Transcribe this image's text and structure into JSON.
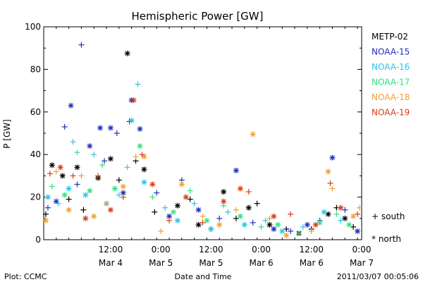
{
  "footer": {
    "left": "Plot: CCMC",
    "center": "Date and Time",
    "right": "2011/03/07 00:05:06"
  },
  "marker_legend": {
    "south": "+ south",
    "north": "* north"
  },
  "chart_data": {
    "type": "scatter",
    "title": "Hemispheric Power [GW]",
    "xlabel": "Date and Time",
    "ylabel": "P [GW]",
    "ylim": [
      0,
      100
    ],
    "yticks": [
      0,
      20,
      40,
      60,
      80,
      100
    ],
    "xlim": [
      "2011-03-03T20:00",
      "2011-03-07T00:00"
    ],
    "xticks": [
      {
        "t": "2011-03-04T12:00",
        "time": "12:00",
        "date": "Mar 4"
      },
      {
        "t": "2011-03-05T00:00",
        "time": "0:00",
        "date": "Mar 5"
      },
      {
        "t": "2011-03-05T12:00",
        "time": "12:00",
        "date": "Mar 5"
      },
      {
        "t": "2011-03-06T00:00",
        "time": "0:00",
        "date": "Mar 6"
      },
      {
        "t": "2011-03-06T12:00",
        "time": "12:00",
        "date": "Mar 6"
      },
      {
        "t": "2011-03-07T00:00",
        "time": "0:00",
        "date": "Mar 7"
      }
    ],
    "legend_position": "right",
    "markers": {
      "south": "+",
      "north": "*"
    },
    "series": [
      {
        "name": "METP-02",
        "color": "#000000",
        "points": [
          {
            "t": "2011-03-03T20:30",
            "y": 12,
            "h": "south"
          },
          {
            "t": "2011-03-03T22:00",
            "y": 35,
            "h": "north"
          },
          {
            "t": "2011-03-04T00:30",
            "y": 30,
            "h": "north"
          },
          {
            "t": "2011-03-04T02:00",
            "y": 19,
            "h": "south"
          },
          {
            "t": "2011-03-04T04:00",
            "y": 34,
            "h": "north"
          },
          {
            "t": "2011-03-04T05:30",
            "y": 14,
            "h": "south"
          },
          {
            "t": "2011-03-04T09:00",
            "y": 29,
            "h": "north"
          },
          {
            "t": "2011-03-04T12:00",
            "y": 38,
            "h": "north"
          },
          {
            "t": "2011-03-04T14:00",
            "y": 28,
            "h": "south"
          },
          {
            "t": "2011-03-04T16:00",
            "y": 87.5,
            "h": "north"
          },
          {
            "t": "2011-03-04T18:00",
            "y": 37,
            "h": "south"
          },
          {
            "t": "2011-03-04T20:00",
            "y": 33,
            "h": "north"
          },
          {
            "t": "2011-03-04T22:30",
            "y": 13,
            "h": "south"
          },
          {
            "t": "2011-03-05T04:00",
            "y": 16,
            "h": "north"
          },
          {
            "t": "2011-03-05T07:00",
            "y": 19,
            "h": "south"
          },
          {
            "t": "2011-03-05T09:00",
            "y": 7,
            "h": "north"
          },
          {
            "t": "2011-03-05T12:00",
            "y": 5,
            "h": "south"
          },
          {
            "t": "2011-03-05T15:00",
            "y": 22.5,
            "h": "north"
          },
          {
            "t": "2011-03-05T18:00",
            "y": 10,
            "h": "south"
          },
          {
            "t": "2011-03-05T21:00",
            "y": 15,
            "h": "north"
          },
          {
            "t": "2011-03-05T23:00",
            "y": 17,
            "h": "south"
          },
          {
            "t": "2011-03-06T02:00",
            "y": 7,
            "h": "north"
          },
          {
            "t": "2011-03-06T06:00",
            "y": 5,
            "h": "south"
          },
          {
            "t": "2011-03-06T09:00",
            "y": 3,
            "h": "north"
          },
          {
            "t": "2011-03-06T12:00",
            "y": 5,
            "h": "south"
          },
          {
            "t": "2011-03-06T16:00",
            "y": 12,
            "h": "north"
          },
          {
            "t": "2011-03-06T18:00",
            "y": 15,
            "h": "south"
          },
          {
            "t": "2011-03-06T20:00",
            "y": 10,
            "h": "north"
          },
          {
            "t": "2011-03-06T22:00",
            "y": 6,
            "h": "south"
          }
        ]
      },
      {
        "name": "NOAA-15",
        "color": "#1f2fbf",
        "points": [
          {
            "t": "2011-03-03T21:00",
            "y": 15,
            "h": "south"
          },
          {
            "t": "2011-03-03T23:00",
            "y": 18,
            "h": "north"
          },
          {
            "t": "2011-03-04T01:00",
            "y": 53,
            "h": "south"
          },
          {
            "t": "2011-03-04T02:30",
            "y": 63,
            "h": "north"
          },
          {
            "t": "2011-03-04T04:00",
            "y": 26,
            "h": "south"
          },
          {
            "t": "2011-03-04T05:00",
            "y": 91.5,
            "h": "south"
          },
          {
            "t": "2011-03-04T07:00",
            "y": 44,
            "h": "north"
          },
          {
            "t": "2011-03-04T09:30",
            "y": 52.5,
            "h": "north"
          },
          {
            "t": "2011-03-04T10:30",
            "y": 37,
            "h": "south"
          },
          {
            "t": "2011-03-04T12:00",
            "y": 52.5,
            "h": "north"
          },
          {
            "t": "2011-03-04T13:30",
            "y": 50,
            "h": "south"
          },
          {
            "t": "2011-03-04T15:00",
            "y": 22,
            "h": "north"
          },
          {
            "t": "2011-03-04T16:30",
            "y": 55.5,
            "h": "south"
          },
          {
            "t": "2011-03-04T17:00",
            "y": 65.5,
            "h": "north"
          },
          {
            "t": "2011-03-04T19:00",
            "y": 52,
            "h": "north"
          },
          {
            "t": "2011-03-04T23:00",
            "y": 22,
            "h": "south"
          },
          {
            "t": "2011-03-05T02:00",
            "y": 11,
            "h": "north"
          },
          {
            "t": "2011-03-05T05:00",
            "y": 28,
            "h": "south"
          },
          {
            "t": "2011-03-05T09:00",
            "y": 14,
            "h": "north"
          },
          {
            "t": "2011-03-05T14:00",
            "y": 10,
            "h": "south"
          },
          {
            "t": "2011-03-05T18:00",
            "y": 32.5,
            "h": "north"
          },
          {
            "t": "2011-03-05T22:00",
            "y": 8,
            "h": "south"
          },
          {
            "t": "2011-03-06T03:00",
            "y": 5,
            "h": "north"
          },
          {
            "t": "2011-03-06T07:00",
            "y": 4,
            "h": "south"
          },
          {
            "t": "2011-03-06T11:00",
            "y": 7,
            "h": "north"
          },
          {
            "t": "2011-03-06T14:00",
            "y": 9,
            "h": "south"
          },
          {
            "t": "2011-03-06T17:00",
            "y": 38.5,
            "h": "north"
          },
          {
            "t": "2011-03-06T20:00",
            "y": 14,
            "h": "south"
          },
          {
            "t": "2011-03-06T23:00",
            "y": 4,
            "h": "north"
          }
        ]
      },
      {
        "name": "NOAA-16",
        "color": "#29c6e6",
        "points": [
          {
            "t": "2011-03-03T21:00",
            "y": 20,
            "h": "north"
          },
          {
            "t": "2011-03-03T23:30",
            "y": 17,
            "h": "south"
          },
          {
            "t": "2011-03-04T02:00",
            "y": 24,
            "h": "north"
          },
          {
            "t": "2011-03-04T03:00",
            "y": 46,
            "h": "south"
          },
          {
            "t": "2011-03-04T06:00",
            "y": 21,
            "h": "north"
          },
          {
            "t": "2011-03-04T08:00",
            "y": 40,
            "h": "south"
          },
          {
            "t": "2011-03-04T11:00",
            "y": 17,
            "h": "north"
          },
          {
            "t": "2011-03-04T14:00",
            "y": 21,
            "h": "south"
          },
          {
            "t": "2011-03-04T17:00",
            "y": 56,
            "h": "north"
          },
          {
            "t": "2011-03-04T18:30",
            "y": 73,
            "h": "south"
          },
          {
            "t": "2011-03-04T20:00",
            "y": 27,
            "h": "north"
          },
          {
            "t": "2011-03-05T01:00",
            "y": 15,
            "h": "south"
          },
          {
            "t": "2011-03-05T04:00",
            "y": 9,
            "h": "north"
          },
          {
            "t": "2011-03-05T08:00",
            "y": 17,
            "h": "south"
          },
          {
            "t": "2011-03-05T12:00",
            "y": 5,
            "h": "north"
          },
          {
            "t": "2011-03-05T16:00",
            "y": 13,
            "h": "south"
          },
          {
            "t": "2011-03-05T20:00",
            "y": 7,
            "h": "north"
          },
          {
            "t": "2011-03-06T01:00",
            "y": 9,
            "h": "south"
          },
          {
            "t": "2011-03-06T05:00",
            "y": 4,
            "h": "north"
          },
          {
            "t": "2011-03-06T10:00",
            "y": 6,
            "h": "south"
          },
          {
            "t": "2011-03-06T15:00",
            "y": 13,
            "h": "north"
          },
          {
            "t": "2011-03-06T19:00",
            "y": 9,
            "h": "south"
          }
        ]
      },
      {
        "name": "NOAA-17",
        "color": "#33e080",
        "points": [
          {
            "t": "2011-03-03T22:00",
            "y": 25,
            "h": "south"
          },
          {
            "t": "2011-03-04T01:00",
            "y": 21,
            "h": "north"
          },
          {
            "t": "2011-03-04T04:00",
            "y": 41,
            "h": "south"
          },
          {
            "t": "2011-03-04T07:00",
            "y": 23,
            "h": "north"
          },
          {
            "t": "2011-03-04T10:00",
            "y": 35,
            "h": "south"
          },
          {
            "t": "2011-03-04T13:00",
            "y": 24,
            "h": "north"
          },
          {
            "t": "2011-03-04T16:00",
            "y": 34,
            "h": "south"
          },
          {
            "t": "2011-03-04T19:00",
            "y": 44,
            "h": "north"
          },
          {
            "t": "2011-03-04T22:00",
            "y": 20,
            "h": "south"
          },
          {
            "t": "2011-03-05T03:00",
            "y": 13,
            "h": "north"
          },
          {
            "t": "2011-03-05T07:00",
            "y": 23,
            "h": "south"
          },
          {
            "t": "2011-03-05T11:00",
            "y": 9,
            "h": "north"
          },
          {
            "t": "2011-03-05T15:00",
            "y": 16,
            "h": "south"
          },
          {
            "t": "2011-03-05T19:00",
            "y": 11,
            "h": "north"
          },
          {
            "t": "2011-03-06T00:00",
            "y": 6,
            "h": "south"
          },
          {
            "t": "2011-03-06T04:00",
            "y": 7,
            "h": "north"
          },
          {
            "t": "2011-03-06T09:00",
            "y": 3,
            "h": "south"
          },
          {
            "t": "2011-03-06T14:00",
            "y": 8,
            "h": "north"
          },
          {
            "t": "2011-03-06T18:00",
            "y": 12,
            "h": "south"
          },
          {
            "t": "2011-03-06T21:00",
            "y": 7,
            "h": "north"
          }
        ]
      },
      {
        "name": "NOAA-18",
        "color": "#f0a030",
        "points": [
          {
            "t": "2011-03-03T20:30",
            "y": 9,
            "h": "north"
          },
          {
            "t": "2011-03-03T23:00",
            "y": 32,
            "h": "south"
          },
          {
            "t": "2011-03-04T02:00",
            "y": 14,
            "h": "north"
          },
          {
            "t": "2011-03-04T05:00",
            "y": 30,
            "h": "south"
          },
          {
            "t": "2011-03-04T08:00",
            "y": 11,
            "h": "north"
          },
          {
            "t": "2011-03-04T11:00",
            "y": 17,
            "h": "south"
          },
          {
            "t": "2011-03-04T15:00",
            "y": 25,
            "h": "north"
          },
          {
            "t": "2011-03-04T18:00",
            "y": 39,
            "h": "south"
          },
          {
            "t": "2011-03-04T20:00",
            "y": 39,
            "h": "north"
          },
          {
            "t": "2011-03-05T00:00",
            "y": 4,
            "h": "south"
          },
          {
            "t": "2011-03-05T05:00",
            "y": 26,
            "h": "north"
          },
          {
            "t": "2011-03-05T10:00",
            "y": 11,
            "h": "south"
          },
          {
            "t": "2011-03-05T14:00",
            "y": 7,
            "h": "north"
          },
          {
            "t": "2011-03-05T18:00",
            "y": 14,
            "h": "south"
          },
          {
            "t": "2011-03-05T22:00",
            "y": 49.5,
            "h": "north"
          },
          {
            "t": "2011-03-06T02:00",
            "y": 10,
            "h": "south"
          },
          {
            "t": "2011-03-06T06:00",
            "y": 2,
            "h": "north"
          },
          {
            "t": "2011-03-06T12:00",
            "y": 4,
            "h": "south"
          },
          {
            "t": "2011-03-06T16:00",
            "y": 32,
            "h": "north"
          },
          {
            "t": "2011-03-06T17:00",
            "y": 24,
            "h": "south"
          },
          {
            "t": "2011-03-06T22:00",
            "y": 11,
            "h": "north"
          },
          {
            "t": "2011-03-06T23:30",
            "y": 15,
            "h": "south"
          }
        ]
      },
      {
        "name": "NOAA-19",
        "color": "#d93a1a",
        "points": [
          {
            "t": "2011-03-03T21:30",
            "y": 31,
            "h": "south"
          },
          {
            "t": "2011-03-04T00:00",
            "y": 34,
            "h": "north"
          },
          {
            "t": "2011-03-04T03:00",
            "y": 30,
            "h": "south"
          },
          {
            "t": "2011-03-04T06:00",
            "y": 10,
            "h": "north"
          },
          {
            "t": "2011-03-04T09:00",
            "y": 30,
            "h": "south"
          },
          {
            "t": "2011-03-04T12:00",
            "y": 14,
            "h": "north"
          },
          {
            "t": "2011-03-04T15:00",
            "y": 20,
            "h": "south"
          },
          {
            "t": "2011-03-04T17:30",
            "y": 65.5,
            "h": "north"
          },
          {
            "t": "2011-03-04T19:30",
            "y": 40,
            "h": "south"
          },
          {
            "t": "2011-03-04T22:00",
            "y": 26,
            "h": "north"
          },
          {
            "t": "2011-03-05T02:00",
            "y": 9,
            "h": "south"
          },
          {
            "t": "2011-03-05T06:00",
            "y": 20,
            "h": "north"
          },
          {
            "t": "2011-03-05T10:00",
            "y": 8,
            "h": "south"
          },
          {
            "t": "2011-03-05T15:00",
            "y": 18,
            "h": "north"
          },
          {
            "t": "2011-03-05T19:00",
            "y": 24,
            "h": "north"
          },
          {
            "t": "2011-03-05T21:00",
            "y": 22.5,
            "h": "south"
          },
          {
            "t": "2011-03-06T03:00",
            "y": 11,
            "h": "north"
          },
          {
            "t": "2011-03-06T07:00",
            "y": 12,
            "h": "south"
          },
          {
            "t": "2011-03-06T13:00",
            "y": 7,
            "h": "north"
          },
          {
            "t": "2011-03-06T16:30",
            "y": 26.5,
            "h": "south"
          },
          {
            "t": "2011-03-06T19:00",
            "y": 15,
            "h": "north"
          },
          {
            "t": "2011-03-06T23:00",
            "y": 12,
            "h": "south"
          }
        ]
      }
    ]
  }
}
